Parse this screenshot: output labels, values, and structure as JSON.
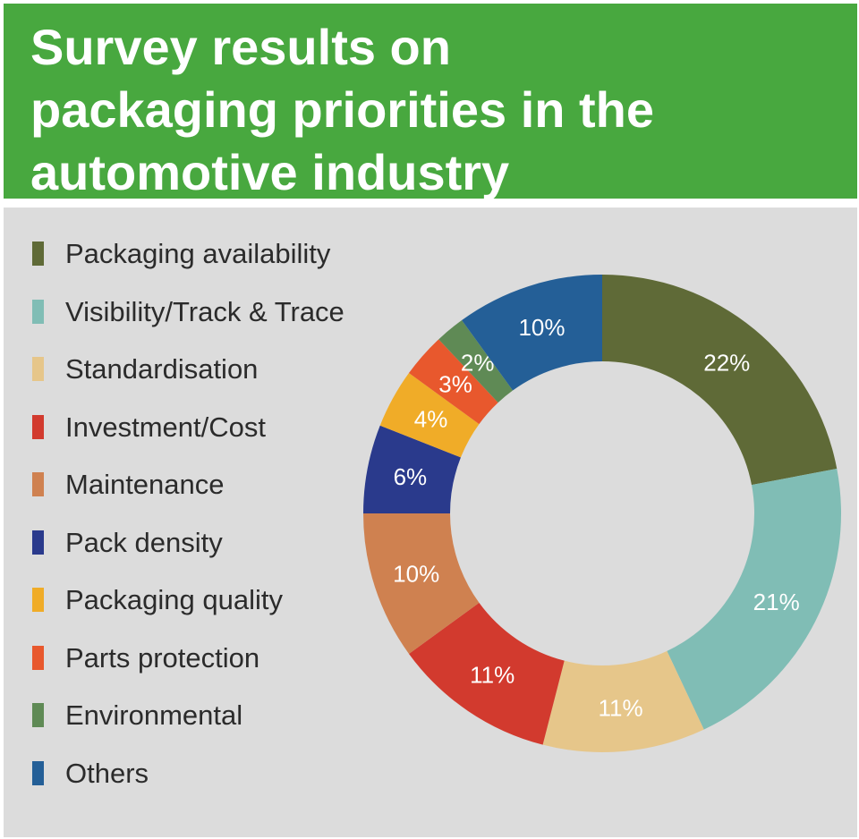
{
  "title_lines": [
    "Survey results on",
    "packaging priorities in the",
    "automotive industry"
  ],
  "chart_data": {
    "type": "pie",
    "donut": true,
    "title": "Survey results on packaging priorities in the automotive industry",
    "categories": [
      "Packaging availability",
      "Visibility/Track & Trace",
      "Standardisation",
      "Investment/Cost",
      "Maintenance",
      "Pack density",
      "Packaging quality",
      "Parts protection",
      "Environmental",
      "Others"
    ],
    "values": [
      22,
      21,
      11,
      11,
      10,
      6,
      4,
      3,
      2,
      10
    ],
    "labels": [
      "22%",
      "21%",
      "11%",
      "11%",
      "10%",
      "6%",
      "4%",
      "3%",
      "2%",
      "10%"
    ],
    "colors": [
      "#5f6a37",
      "#80bdb5",
      "#e6c68a",
      "#d23a2e",
      "#cf8150",
      "#2a3a8c",
      "#f0ac28",
      "#e8582d",
      "#5f8a55",
      "#245f97"
    ],
    "legend_placement": "left"
  }
}
